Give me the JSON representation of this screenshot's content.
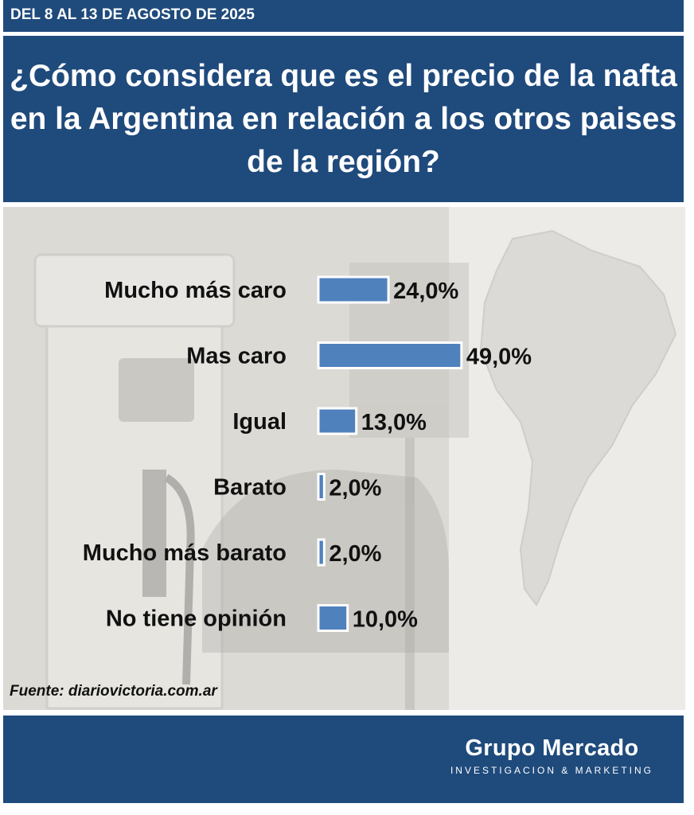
{
  "header": {
    "date_range": "DEL 8 AL 13 DE AGOSTO DE 2025",
    "question": "¿Cómo considera que es el precio de la nafta en la Argentina en relación a los otros paises de la región?"
  },
  "chart_data": {
    "type": "bar",
    "orientation": "horizontal",
    "categories": [
      "Mucho más caro",
      "Mas caro",
      "Igual",
      "Barato",
      "Mucho más barato",
      "No tiene opinión"
    ],
    "values": [
      24.0,
      49.0,
      13.0,
      2.0,
      2.0,
      10.0
    ],
    "value_labels": [
      "24,0%",
      "49,0%",
      "13,0%",
      "2,0%",
      "2,0%",
      "10,0%"
    ],
    "xlim": [
      0,
      50
    ],
    "grid": false,
    "bar_color": "#4f81bd",
    "bar_border_color": "#ffffff"
  },
  "source": "Fuente: diariovictoria.com.ar",
  "footer": {
    "brand_name": "Grupo Mercado",
    "brand_tagline": "INVESTIGACION & MARKETING"
  },
  "colors": {
    "header_bg": "#1f4a7c",
    "chart_bg": "#e9e8e4"
  }
}
